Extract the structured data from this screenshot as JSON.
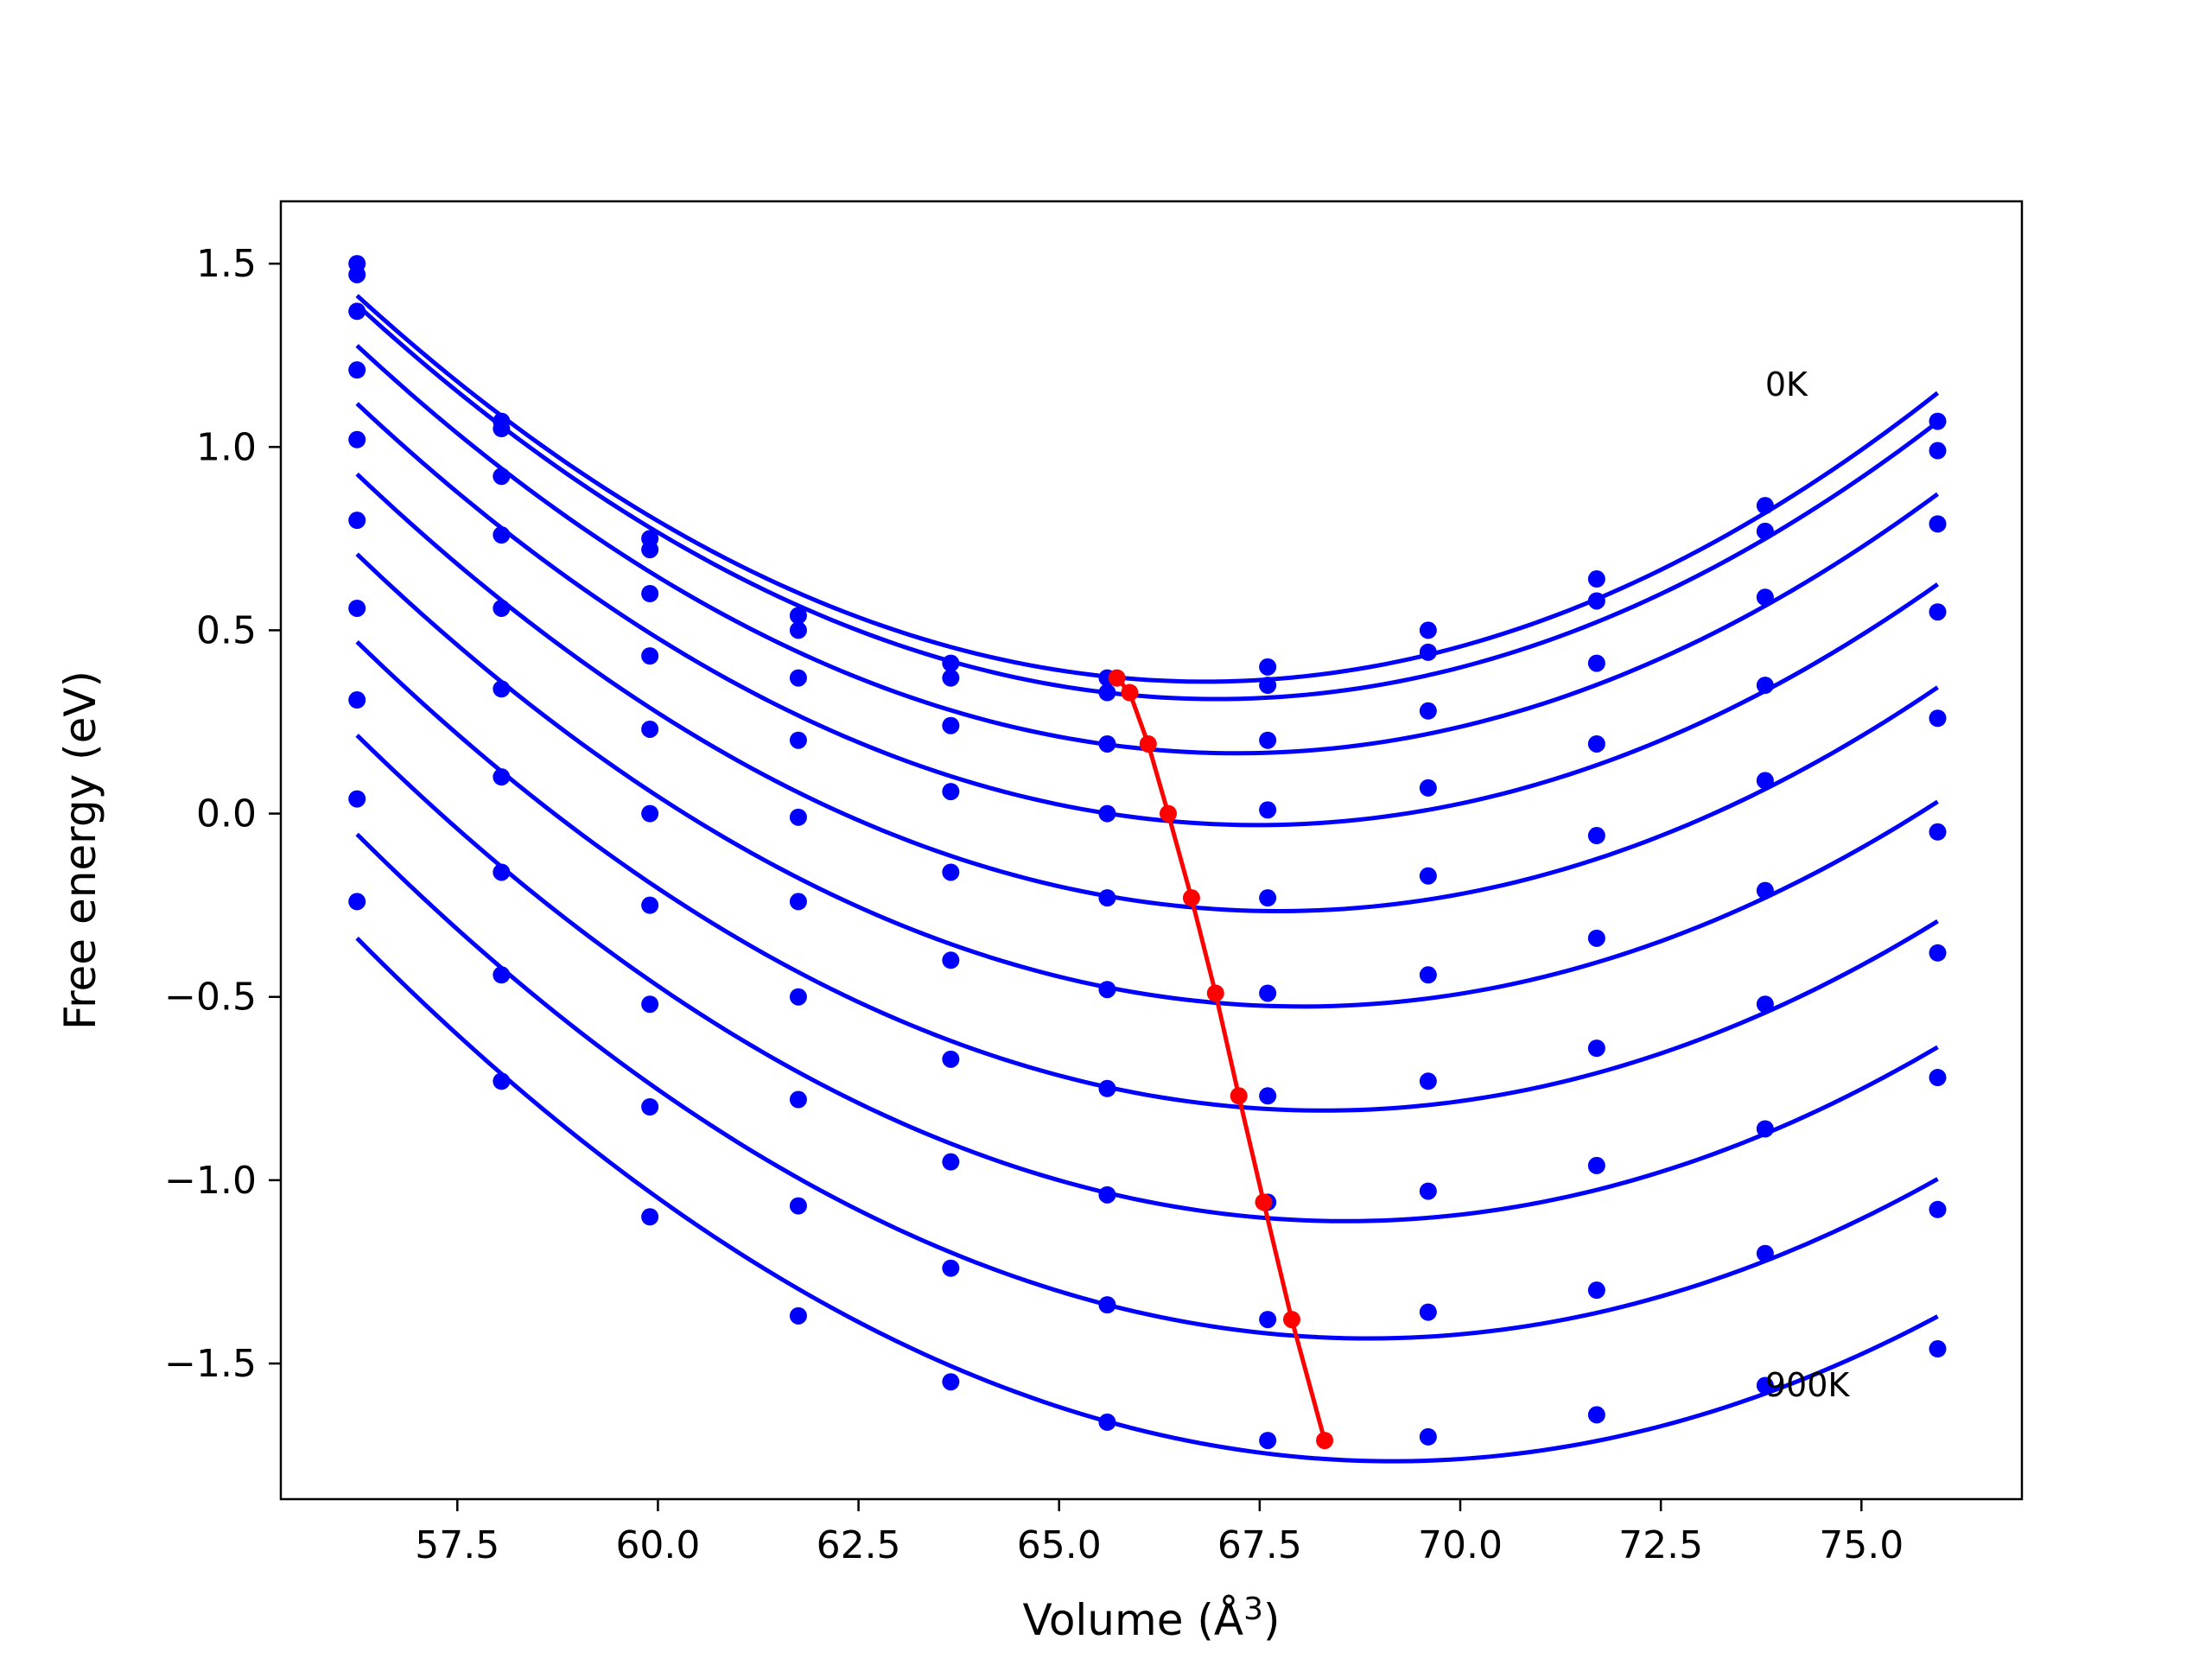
{
  "chart_data": {
    "type": "line",
    "xlabel": "Volume (Å^3)",
    "ylabel": "Free energy (eV)",
    "xlim": [
      55.3,
      77.0
    ],
    "ylim": [
      -1.87,
      1.67
    ],
    "xticks": [
      57.5,
      60.0,
      62.5,
      65.0,
      67.5,
      70.0,
      72.5,
      75.0
    ],
    "xtick_labels": [
      "57.5",
      "60.0",
      "62.5",
      "65.0",
      "67.5",
      "70.0",
      "72.5",
      "75.0"
    ],
    "yticks": [
      1.5,
      1.0,
      0.5,
      0.0,
      -0.5,
      -1.0,
      -1.5
    ],
    "ytick_labels": [
      "1.5",
      "1.0",
      "0.5",
      "0.0",
      "−0.5",
      "−1.0",
      "−1.5"
    ],
    "grid": false,
    "colors": {
      "curves": "#0000ff",
      "minima": "#ff0000",
      "frame": "#000000"
    },
    "annotations": [
      {
        "text": "0K",
        "x": 73.8,
        "y": 1.14
      },
      {
        "text": "900K",
        "x": 73.8,
        "y": -1.59
      }
    ],
    "x": [
      56.25,
      58.05,
      59.9,
      61.75,
      63.65,
      65.6,
      67.6,
      69.6,
      71.7,
      73.8,
      75.95
    ],
    "series": [
      {
        "values": [
          1.5,
          1.07,
          0.75,
          0.54,
          0.41,
          0.37,
          0.4,
          0.5,
          0.64,
          0.84,
          1.07
        ]
      },
      {
        "values": [
          1.47,
          1.05,
          0.72,
          0.5,
          0.37,
          0.33,
          0.35,
          0.44,
          0.58,
          0.77,
          0.99
        ]
      },
      {
        "values": [
          1.37,
          0.92,
          0.6,
          0.37,
          0.24,
          0.19,
          0.2,
          0.28,
          0.41,
          0.59,
          0.79
        ]
      },
      {
        "values": [
          1.21,
          0.76,
          0.43,
          0.2,
          0.06,
          0.0,
          0.01,
          0.07,
          0.19,
          0.35,
          0.55
        ]
      },
      {
        "values": [
          1.02,
          0.56,
          0.23,
          -0.01,
          -0.16,
          -0.23,
          -0.23,
          -0.17,
          -0.06,
          0.09,
          0.26
        ]
      },
      {
        "values": [
          0.8,
          0.34,
          0.0,
          -0.24,
          -0.4,
          -0.48,
          -0.49,
          -0.44,
          -0.34,
          -0.21,
          -0.05
        ]
      },
      {
        "values": [
          0.56,
          0.1,
          -0.25,
          -0.5,
          -0.67,
          -0.75,
          -0.77,
          -0.73,
          -0.64,
          -0.52,
          -0.38
        ]
      },
      {
        "values": [
          0.31,
          -0.16,
          -0.52,
          -0.78,
          -0.95,
          -1.04,
          -1.06,
          -1.03,
          -0.96,
          -0.86,
          -0.72
        ]
      },
      {
        "values": [
          0.04,
          -0.44,
          -0.8,
          -1.07,
          -1.24,
          -1.34,
          -1.38,
          -1.36,
          -1.3,
          -1.2,
          -1.08
        ]
      },
      {
        "values": [
          -0.24,
          -0.73,
          -1.1,
          -1.37,
          -1.55,
          -1.66,
          -1.71,
          -1.7,
          -1.64,
          -1.56,
          -1.46
        ]
      }
    ],
    "minima": {
      "x": [
        65.72,
        65.88,
        66.11,
        66.36,
        66.65,
        66.95,
        67.24,
        67.55,
        67.9,
        68.31
      ],
      "y": [
        0.37,
        0.33,
        0.19,
        0.0,
        -0.23,
        -0.49,
        -0.77,
        -1.06,
        -1.38,
        -1.71
      ]
    }
  }
}
